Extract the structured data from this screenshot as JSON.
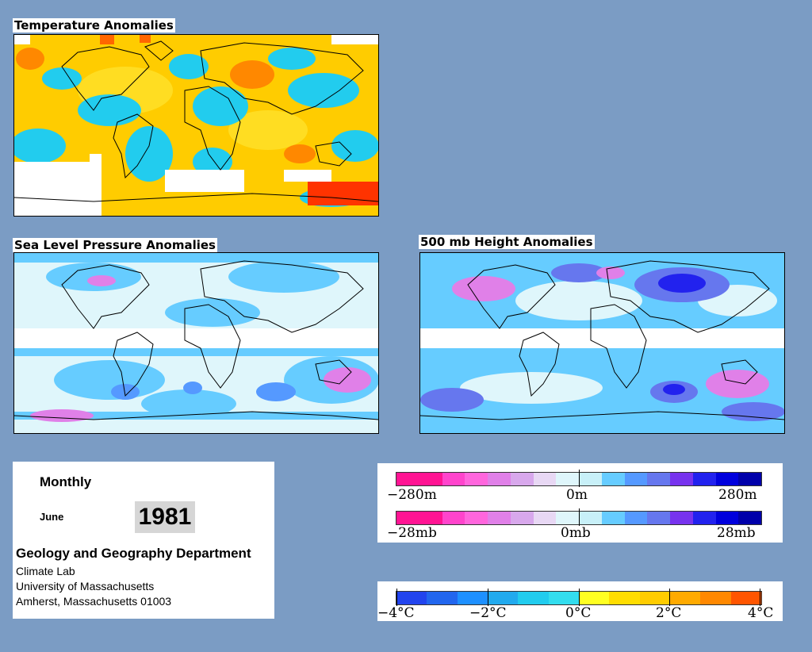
{
  "maps": {
    "temperature": {
      "title": "Temperature Anomalies"
    },
    "slp": {
      "title": "Sea Level Pressure Anomalies"
    },
    "height500": {
      "title": "500 mb Height Anomalies"
    }
  },
  "info": {
    "period": "Monthly",
    "month": "June",
    "year": "1981",
    "department": "Geology and Geography Department",
    "lab": "Climate Lab",
    "university": "University of Massachusetts",
    "address": "Amherst, Massachusetts 01003"
  },
  "legends": {
    "height": {
      "min": "−280m",
      "mid": "0m",
      "max": "280m"
    },
    "pressure": {
      "min": "−28mb",
      "mid": "0mb",
      "max": "28mb"
    },
    "temperature": {
      "labels": [
        "−4°C",
        "−2°C",
        "0°C",
        "2°C",
        "4°C"
      ]
    }
  },
  "colors": {
    "background": "#7b9cc4",
    "anomaly_scale": [
      "#ff1493",
      "#ff1493",
      "#ff44cc",
      "#ff66dd",
      "#e080e8",
      "#d8a8ec",
      "#e8d8f4",
      "#dff6fb",
      "#c8f0f8",
      "#66ccff",
      "#5599ff",
      "#6677ee",
      "#7733ee",
      "#2222ee",
      "#0000dd",
      "#0000aa"
    ],
    "temperature_scale": [
      "#2244ee",
      "#2266ee",
      "#1e90ff",
      "#22aaee",
      "#22ccee",
      "#33ddee",
      "#ffff22",
      "#ffdd00",
      "#ffcc00",
      "#ffaa00",
      "#ff8800",
      "#ff5500"
    ]
  }
}
